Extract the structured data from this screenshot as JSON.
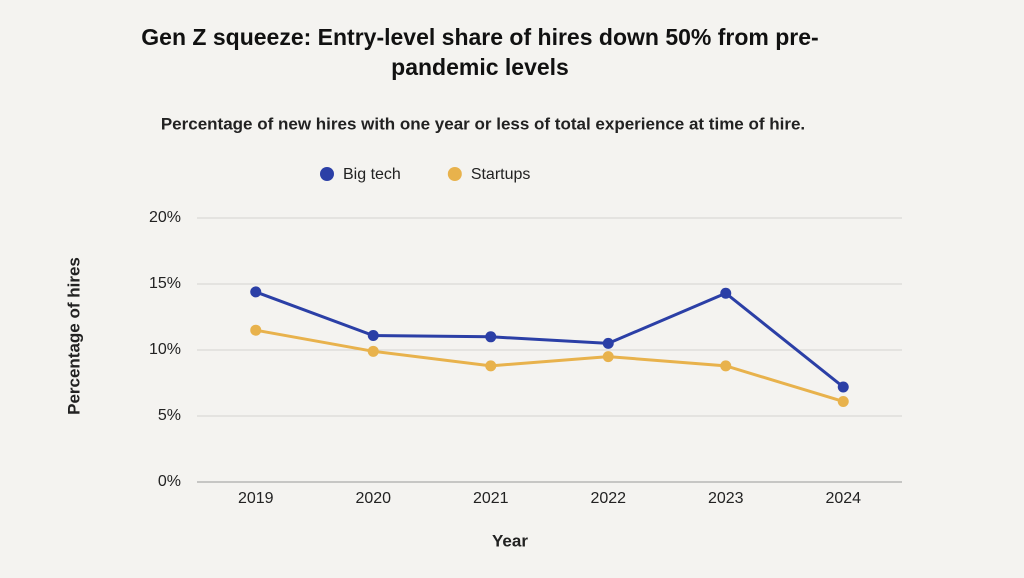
{
  "chart_data": {
    "type": "line",
    "title": "Gen Z squeeze: Entry-level share of hires down 50% from pre-pandemic levels",
    "subtitle": "Percentage of new hires with one year or less of total experience at time of hire.",
    "x_label": "Year",
    "y_label": "Percentage of hires",
    "categories": [
      "2019",
      "2020",
      "2021",
      "2022",
      "2023",
      "2024"
    ],
    "series": [
      {
        "name": "Big tech",
        "color": "#2b3fa6",
        "values": [
          14.4,
          11.1,
          11.0,
          10.5,
          14.3,
          7.2
        ]
      },
      {
        "name": "Startups",
        "color": "#e8b24c",
        "values": [
          11.5,
          9.9,
          8.8,
          9.5,
          8.8,
          6.1
        ]
      }
    ],
    "ylim": [
      0,
      20
    ],
    "yticks": [
      {
        "value": 0,
        "label": "0%"
      },
      {
        "value": 5,
        "label": "5%"
      },
      {
        "value": 10,
        "label": "10%"
      },
      {
        "value": 15,
        "label": "15%"
      },
      {
        "value": 20,
        "label": "20%"
      }
    ],
    "grid": true,
    "legend": "top"
  }
}
